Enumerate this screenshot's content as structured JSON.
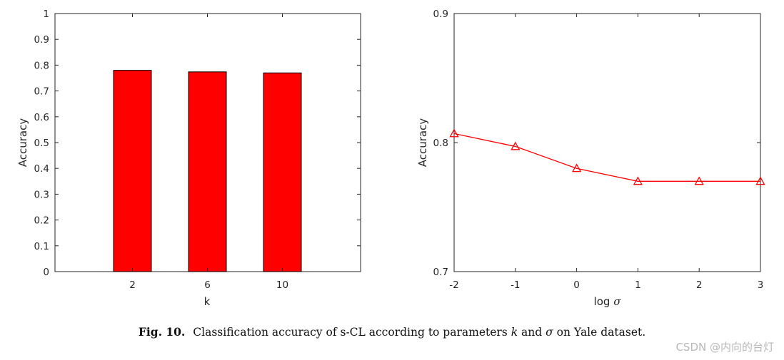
{
  "chart_data": [
    {
      "type": "bar",
      "title": "",
      "categories": [
        "2",
        "6",
        "10"
      ],
      "values": [
        0.78,
        0.774,
        0.77
      ],
      "xlabel": "k",
      "ylabel": "Accuracy",
      "ylim": [
        0,
        1
      ],
      "yticks": [
        "0",
        "0.1",
        "0.2",
        "0.3",
        "0.4",
        "0.5",
        "0.6",
        "0.7",
        "0.8",
        "0.9",
        "1"
      ],
      "bar_color": "#ff0000",
      "grid": false
    },
    {
      "type": "line",
      "title": "",
      "x": [
        -2,
        -1,
        0,
        1,
        2,
        3
      ],
      "y": [
        0.807,
        0.797,
        0.78,
        0.77,
        0.77,
        0.77
      ],
      "xticks": [
        "-2",
        "-1",
        "0",
        "1",
        "2",
        "3"
      ],
      "xlim": [
        -2,
        3
      ],
      "yticks": [
        "0.7",
        "0.8",
        "0.9"
      ],
      "ylim": [
        0.7,
        0.9
      ],
      "xlabel_prefix": "log",
      "xlabel_symbol": "σ",
      "ylabel": "Accuracy",
      "marker": "triangle",
      "line_color": "#ff0000",
      "grid": false
    }
  ],
  "caption": {
    "label": "Fig. 10.",
    "text_before": "Classification accuracy of s-CL according to parameters",
    "param_k": "k",
    "conjunction": "and",
    "param_sigma": "σ",
    "text_after": "on Yale dataset."
  },
  "watermark": "CSDN @内向的台灯",
  "colors": {
    "bar_fill": "#ff0000",
    "line": "#ff0000",
    "axis": "#262626"
  }
}
